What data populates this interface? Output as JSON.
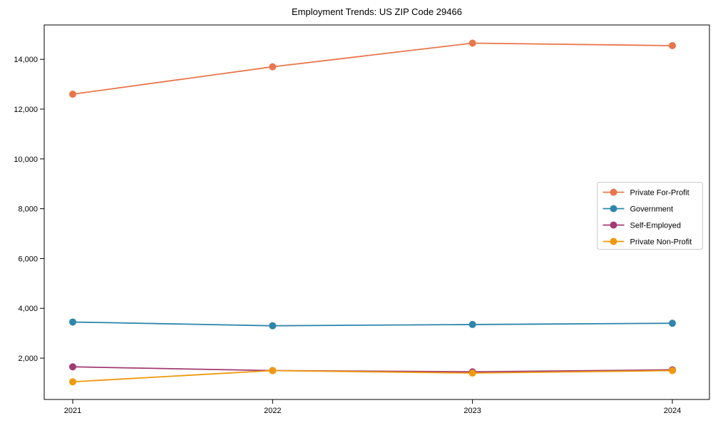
{
  "chart_data": {
    "type": "line",
    "title": "Employment Trends: US ZIP Code 29466",
    "categories": [
      "2021",
      "2022",
      "2023",
      "2024"
    ],
    "series": [
      {
        "name": "Private For-Profit",
        "color": "#e8764a",
        "values": [
          12600,
          13700,
          14650,
          14550
        ]
      },
      {
        "name": "Government",
        "color": "#2e86ab",
        "values": [
          3450,
          3300,
          3350,
          3400
        ]
      },
      {
        "name": "Self-Employed",
        "color": "#a23b72",
        "values": [
          1650,
          1500,
          1450,
          1530
        ]
      },
      {
        "name": "Private Non-Profit",
        "color": "#f0980b",
        "values": [
          1050,
          1500,
          1400,
          1500
        ]
      }
    ],
    "xlabel": "",
    "ylabel": "",
    "ylim": [
      340,
      15380
    ],
    "yticks": [
      2000,
      4000,
      6000,
      8000,
      10000,
      12000,
      14000
    ],
    "ytick_labels": [
      "2,000",
      "4,000",
      "6,000",
      "8,000",
      "10,000",
      "12,000",
      "14,000"
    ],
    "grid": false,
    "legend_position": "center-right",
    "marker": "circle",
    "axis_color": "#000000"
  }
}
